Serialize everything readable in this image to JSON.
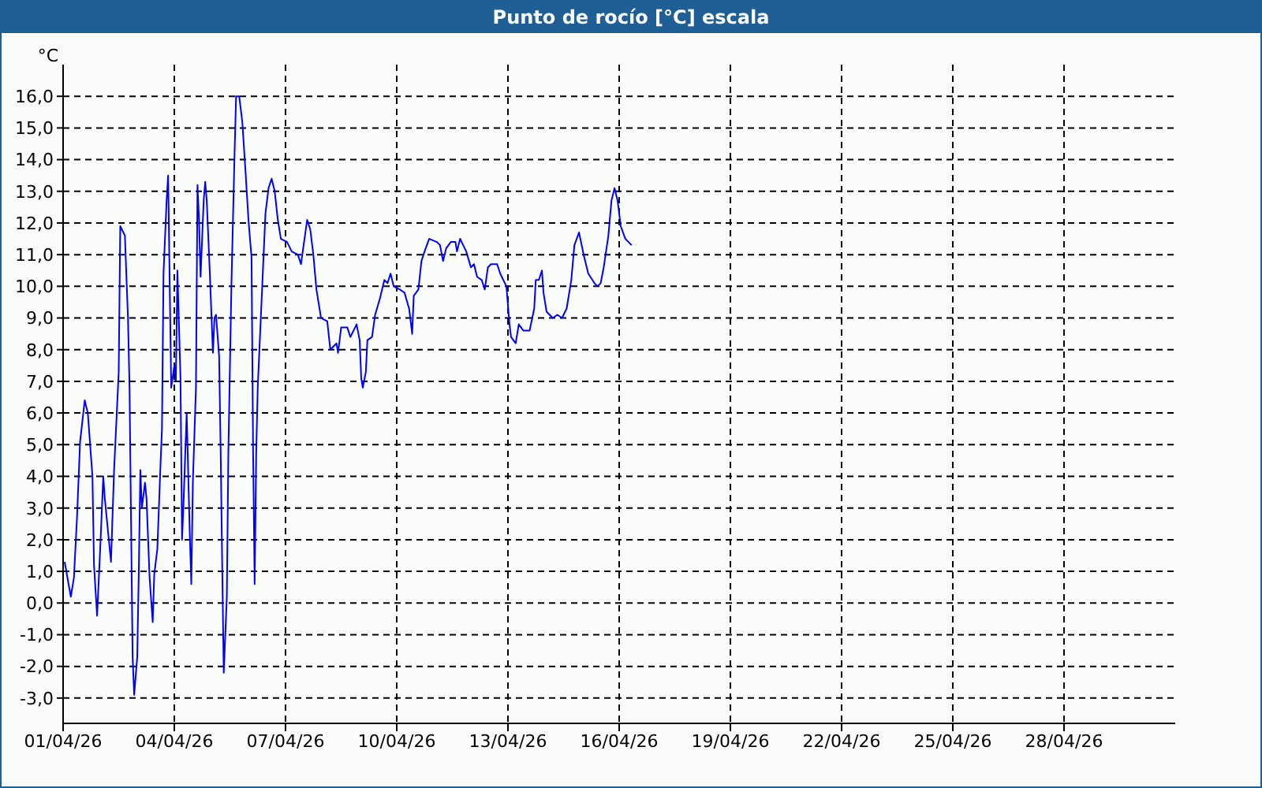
{
  "chart_data": {
    "type": "line",
    "title": "Punto de rocío [°C] escala",
    "ylabel": "°C",
    "xlim": [
      "--04-01",
      "--05-01"
    ],
    "xticks": [
      {
        "value": "--04-01",
        "label": "01/04/26"
      },
      {
        "value": "--04-04",
        "label": "04/04/26"
      },
      {
        "value": "--04-07",
        "label": "07/04/26"
      },
      {
        "value": "--04-10",
        "label": "10/04/26"
      },
      {
        "value": "--04-13",
        "label": "13/04/26"
      },
      {
        "value": "--04-16",
        "label": "16/04/26"
      },
      {
        "value": "--04-19",
        "label": "19/04/26"
      },
      {
        "value": "--04-22",
        "label": "22/04/26"
      },
      {
        "value": "--04-25",
        "label": "25/04/26"
      },
      {
        "value": "--04-28",
        "label": "28/04/26"
      }
    ],
    "ylim": [
      -3.8,
      17.0
    ],
    "yticks": [
      {
        "value": -3,
        "label": "-3,0"
      },
      {
        "value": -2,
        "label": "-2,0"
      },
      {
        "value": -1,
        "label": "-1,0"
      },
      {
        "value": 0,
        "label": "0,0"
      },
      {
        "value": 1,
        "label": "1,0"
      },
      {
        "value": 2,
        "label": "2,0"
      },
      {
        "value": 3,
        "label": "3,0"
      },
      {
        "value": 4,
        "label": "4,0"
      },
      {
        "value": 5,
        "label": "5,0"
      },
      {
        "value": 6,
        "label": "6,0"
      },
      {
        "value": 7,
        "label": "7,0"
      },
      {
        "value": 8,
        "label": "8,0"
      },
      {
        "value": 9,
        "label": "9,0"
      },
      {
        "value": 10,
        "label": "10,0"
      },
      {
        "value": 11,
        "label": "11,0"
      },
      {
        "value": 12,
        "label": "12,0"
      },
      {
        "value": 13,
        "label": "13,0"
      },
      {
        "value": 14,
        "label": "14,0"
      },
      {
        "value": 15,
        "label": "15,0"
      },
      {
        "value": 16,
        "label": "16,0"
      }
    ],
    "grid": true,
    "marker": "none",
    "line_style": "solid",
    "x": [
      "--04-01T01:00",
      "--04-01T05:00",
      "--04-01T07:00",
      "--04-01T09:00",
      "--04-01T11:00",
      "--04-01T14:00",
      "--04-01T16:00",
      "--04-01T19:00",
      "--04-01T20:00",
      "--04-01T22:00",
      "--04-02T00:00",
      "--04-02T02:00",
      "--04-02T03:00",
      "--04-02T07:00",
      "--04-02T09:00",
      "--04-02T12:00",
      "--04-02T13:00",
      "--04-02T16:00",
      "--04-02T18:00",
      "--04-02T19:00",
      "--04-02T21:00",
      "--04-02T22:00",
      "--04-03T00:00",
      "--04-03T01:00",
      "--04-03T02:00",
      "--04-03T03:00",
      "--04-03T05:00",
      "--04-03T06:00",
      "--04-03T08:00",
      "--04-03T10:00",
      "--04-03T11:00",
      "--04-03T13:00",
      "--04-03T15:00",
      "--04-03T16:00",
      "--04-03T17:00",
      "--04-03T19:00",
      "--04-03T20:00",
      "--04-03T21:00",
      "--04-03T22:00",
      "--04-04T00:00",
      "--04-04T01:00",
      "--04-04T02:00",
      "--04-04T04:00",
      "--04-04T05:00",
      "--04-04T06:00",
      "--04-04T07:00",
      "--04-04T08:00",
      "--04-04T10:00",
      "--04-04T11:00",
      "--04-04T12:00",
      "--04-04T14:00",
      "--04-04T15:00",
      "--04-04T16:00",
      "--04-04T17:00",
      "--04-04T19:00",
      "--04-04T20:00",
      "--04-04T21:00",
      "--04-04T23:00",
      "--04-05T01:00",
      "--04-05T02:00",
      "--04-05T03:00",
      "--04-05T05:00",
      "--04-05T06:00",
      "--04-05T07:00",
      "--04-05T08:00",
      "--04-05T10:00",
      "--04-05T11:00",
      "--04-05T13:00",
      "--04-05T15:00",
      "--04-05T16:00",
      "--04-05T18:00",
      "--04-05T20:00",
      "--04-05T22:00",
      "--04-06T00:00",
      "--04-06T02:00",
      "--04-06T03:00",
      "--04-06T04:00",
      "--04-06T05:00",
      "--04-06T06:00",
      "--04-06T08:00",
      "--04-06T09:00",
      "--04-06T11:00",
      "--04-06T13:00",
      "--04-06T15:00",
      "--04-06T17:00",
      "--04-06T19:00",
      "--04-06T21:00",
      "--04-07T01:00",
      "--04-07T04:00",
      "--04-07T08:00",
      "--04-07T10:00",
      "--04-07T12:00",
      "--04-07T14:00",
      "--04-07T16:00",
      "--04-07T18:00",
      "--04-07T20:00",
      "--04-07T23:00",
      "--04-08T03:00",
      "--04-08T05:00",
      "--04-08T09:00",
      "--04-08T10:00",
      "--04-08T12:00",
      "--04-08T16:00",
      "--04-08T18:00",
      "--04-08T22:00",
      "--04-09T00:00",
      "--04-09T01:00",
      "--04-09T02:00",
      "--04-09T04:00",
      "--04-09T05:00",
      "--04-09T08:00",
      "--04-09T10:00",
      "--04-09T13:00",
      "--04-09T16:00",
      "--04-09T18:00",
      "--04-09T20:00",
      "--04-09T22:00",
      "--04-10T02:00",
      "--04-10T05:00",
      "--04-10T08:00",
      "--04-10T10:00",
      "--04-10T11:00",
      "--04-10T14:00",
      "--04-10T16:00",
      "--04-10T18:00",
      "--04-10T21:00",
      "--04-11T02:00",
      "--04-11T04:00",
      "--04-11T06:00",
      "--04-11T08:00",
      "--04-11T11:00",
      "--04-11T14:00",
      "--04-11T15:00",
      "--04-11T17:00",
      "--04-11T19:00",
      "--04-11T21:00",
      "--04-12T00:00",
      "--04-12T02:00",
      "--04-12T04:00",
      "--04-12T07:00",
      "--04-12T09:00",
      "--04-12T11:00",
      "--04-12T13:00",
      "--04-12T17:00",
      "--04-12T19:00",
      "--04-12T23:00",
      "--04-13T01:00",
      "--04-13T02:00",
      "--04-13T05:00",
      "--04-13T07:00",
      "--04-13T10:00",
      "--04-13T14:00",
      "--04-13T17:00",
      "--04-13T18:00",
      "--04-13T20:00",
      "--04-13T22:00",
      "--04-13T23:00",
      "--04-14T01:00",
      "--04-14T05:00",
      "--04-14T08:00",
      "--04-14T11:00",
      "--04-14T14:00",
      "--04-14T17:00",
      "--04-14T19:00",
      "--04-14T22:00",
      "--04-15T01:00",
      "--04-15T04:00",
      "--04-15T08:00",
      "--04-15T10:00",
      "--04-15T12:00",
      "--04-15T14:00",
      "--04-15T17:00",
      "--04-15T19:00",
      "--04-15T21:00",
      "--04-15T23:00",
      "--04-16T01:00",
      "--04-16T04:00",
      "--04-16T08:00"
    ],
    "series": [
      {
        "color": "#0000ff",
        "values": [
          1.3,
          0.2,
          0.8,
          2.7,
          5.1,
          6.4,
          6.0,
          4.0,
          1.2,
          -0.4,
          1.7,
          4.0,
          3.3,
          1.3,
          4.2,
          7.3,
          11.9,
          11.6,
          9.0,
          6.8,
          -1.7,
          -2.9,
          -1.7,
          1.0,
          4.2,
          3.0,
          3.8,
          3.3,
          0.8,
          -0.6,
          0.9,
          1.7,
          4.3,
          5.5,
          10.4,
          12.7,
          13.5,
          10.1,
          6.8,
          7.5,
          7.0,
          10.5,
          7.1,
          2.0,
          3.2,
          4.6,
          6.0,
          2.2,
          0.6,
          3.8,
          6.8,
          13.2,
          12.1,
          10.3,
          12.7,
          13.3,
          12.7,
          10.4,
          7.9,
          9.0,
          9.1,
          7.8,
          4.8,
          1.2,
          -2.2,
          0.2,
          4.8,
          10.1,
          14.2,
          16.0,
          16.0,
          15.2,
          13.7,
          12.1,
          10.9,
          4.8,
          0.6,
          4.7,
          6.8,
          9.0,
          10.1,
          12.3,
          13.1,
          13.4,
          13.0,
          12.1,
          11.5,
          11.4,
          11.1,
          11.0,
          10.7,
          11.4,
          12.1,
          11.8,
          11.0,
          9.9,
          9.0,
          8.9,
          8.0,
          8.2,
          7.9,
          8.7,
          8.7,
          8.4,
          8.8,
          8.3,
          7.1,
          6.8,
          7.3,
          8.3,
          8.4,
          9.1,
          9.6,
          10.2,
          10.1,
          10.4,
          10.0,
          9.9,
          9.8,
          9.3,
          8.5,
          9.7,
          9.9,
          10.8,
          11.1,
          11.5,
          11.4,
          11.3,
          10.8,
          11.2,
          11.4,
          11.4,
          11.1,
          11.5,
          11.3,
          11.1,
          10.6,
          10.7,
          10.3,
          10.2,
          9.9,
          10.6,
          10.7,
          10.7,
          10.4,
          10.0,
          8.8,
          8.4,
          8.2,
          8.8,
          8.6,
          8.6,
          9.3,
          10.2,
          10.2,
          10.5,
          9.8,
          9.2,
          9.0,
          9.1,
          9.0,
          9.3,
          10.2,
          11.3,
          11.7,
          11.0,
          10.4,
          10.1,
          10.0,
          10.1,
          10.6,
          11.6,
          12.7,
          13.1,
          12.7,
          11.9,
          11.5,
          11.3
        ]
      }
    ]
  }
}
